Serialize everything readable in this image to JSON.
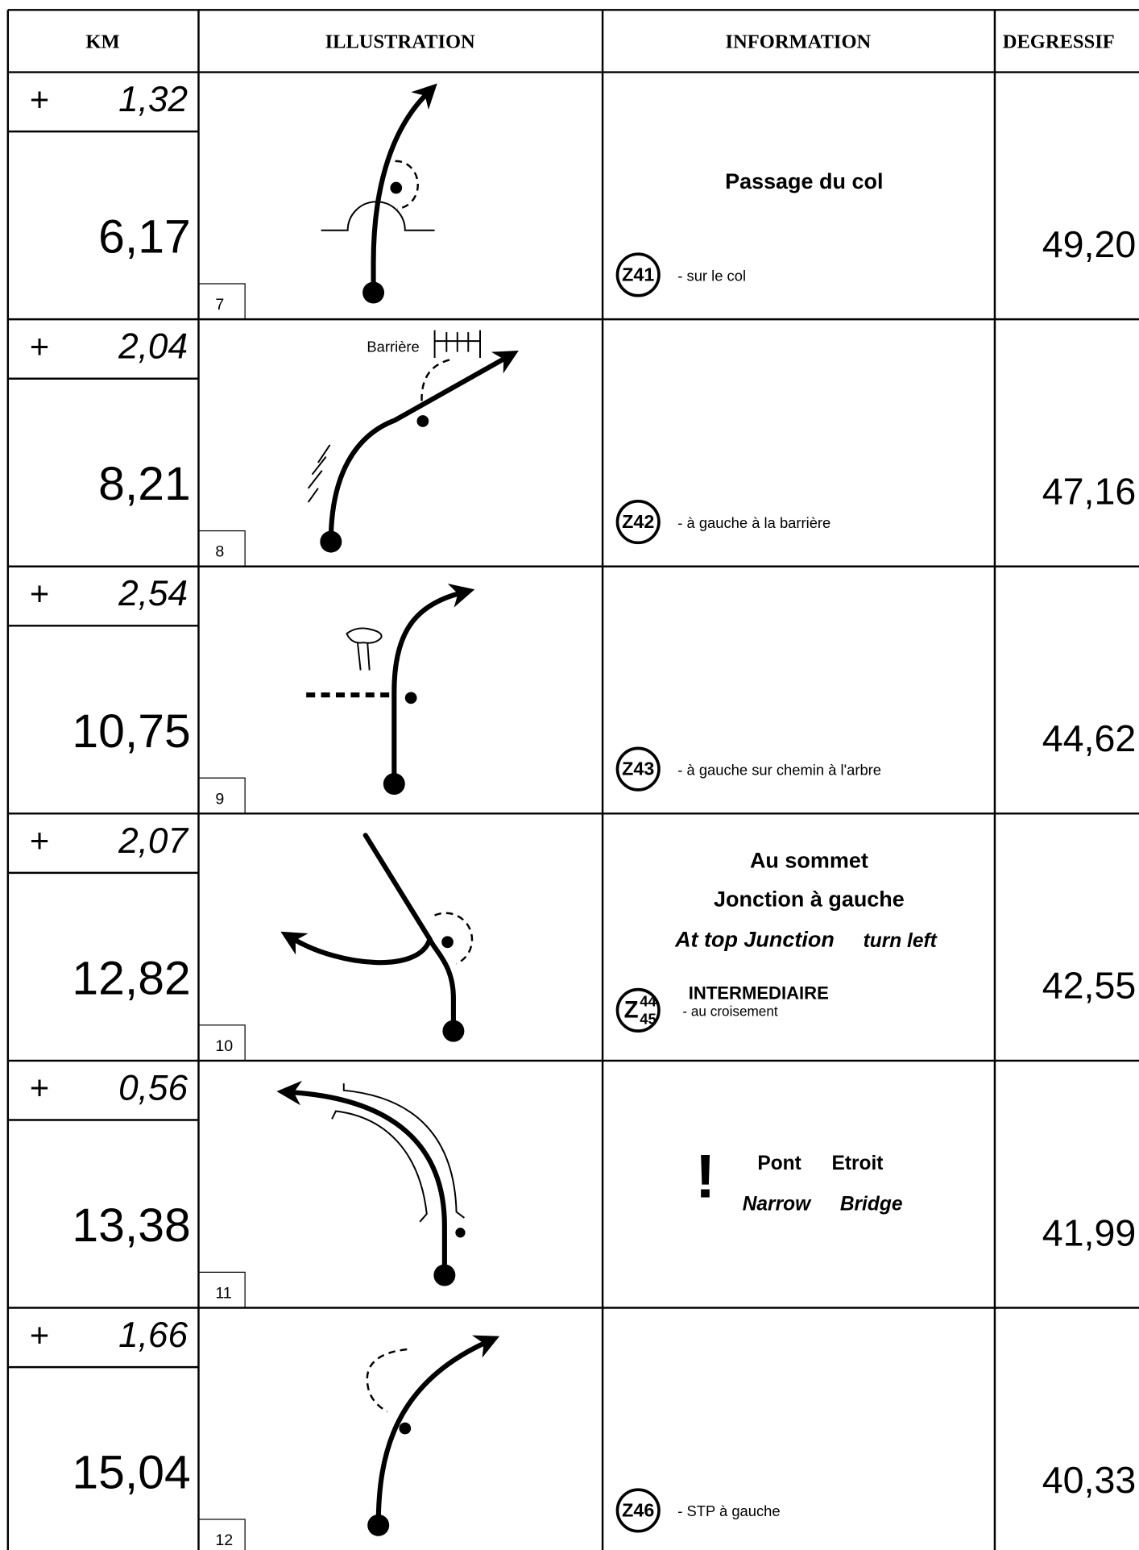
{
  "header": {
    "columns": [
      "KM",
      "ILLUSTRATION",
      "INFORMATION",
      "DEGRESSIF"
    ]
  },
  "rows": [
    {
      "sign": "+",
      "partial": "1,32",
      "total": "6,17",
      "figure": "7",
      "title": "Passage du col",
      "code": "Z41",
      "note": "- sur le col",
      "degressif": "49,20"
    },
    {
      "sign": "+",
      "partial": "2,04",
      "total": "8,21",
      "figure": "8",
      "figure_label": "Barrière",
      "code": "Z42",
      "note": "- à gauche à la barrière",
      "degressif": "47,16"
    },
    {
      "sign": "+",
      "partial": "2,54",
      "total": "10,75",
      "figure": "9",
      "code": "Z43",
      "note": "- à gauche sur chemin à l'arbre",
      "degressif": "44,62"
    },
    {
      "sign": "+",
      "partial": "2,07",
      "total": "12,82",
      "figure": "10",
      "lines": [
        "Au sommet",
        "Jonction à gauche"
      ],
      "english": [
        "At top Junction",
        "turn left"
      ],
      "code": {
        "letter": "Z",
        "top": "44",
        "bottom": "45"
      },
      "code_title": "INTERMEDIAIRE",
      "note": "- au croisement",
      "degressif": "42,55"
    },
    {
      "sign": "+",
      "partial": "0,56",
      "total": "13,38",
      "figure": "11",
      "warning": "!",
      "lines": [
        "Pont",
        "Etroit"
      ],
      "english": [
        "Narrow",
        "Bridge"
      ],
      "degressif": "41,99"
    },
    {
      "sign": "+",
      "partial": "1,66",
      "total": "15,04",
      "figure": "12",
      "code": "Z46",
      "note": "- STP à gauche",
      "degressif": "40,33"
    }
  ]
}
